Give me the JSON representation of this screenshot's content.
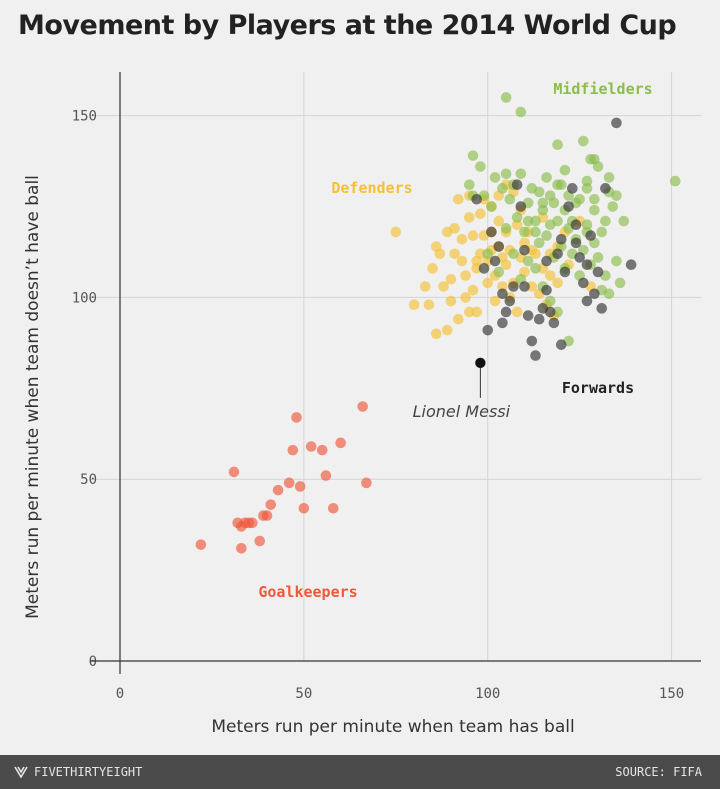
{
  "chart_data": {
    "type": "scatter",
    "title": "Movement by Players at the 2014 World Cup",
    "xlabel": "Meters run per minute when team has ball",
    "ylabel": "Meters run per minute when team doesn’t have ball",
    "xlim": [
      0,
      158
    ],
    "ylim": [
      0,
      162
    ],
    "x_ticks": [
      0,
      50,
      100,
      150
    ],
    "y_ticks": [
      0,
      50,
      100,
      150
    ],
    "grid": true,
    "legend": "direct labels",
    "series": [
      {
        "name": "Goalkeepers",
        "color": "#f0583a",
        "points": [
          [
            22,
            32
          ],
          [
            31,
            52
          ],
          [
            32,
            38
          ],
          [
            33,
            37
          ],
          [
            34,
            38
          ],
          [
            35,
            38
          ],
          [
            33,
            31
          ],
          [
            36,
            38
          ],
          [
            38,
            33
          ],
          [
            39,
            40
          ],
          [
            40,
            40
          ],
          [
            41,
            43
          ],
          [
            43,
            47
          ],
          [
            46,
            49
          ],
          [
            47,
            58
          ],
          [
            48,
            67
          ],
          [
            49,
            48
          ],
          [
            50,
            42
          ],
          [
            52,
            59
          ],
          [
            55,
            58
          ],
          [
            56,
            51
          ],
          [
            58,
            42
          ],
          [
            60,
            60
          ],
          [
            66,
            70
          ],
          [
            67,
            49
          ]
        ]
      },
      {
        "name": "Defenders",
        "color": "#f5c034",
        "points": [
          [
            75,
            118
          ],
          [
            80,
            98
          ],
          [
            83,
            103
          ],
          [
            85,
            108
          ],
          [
            86,
            114
          ],
          [
            87,
            112
          ],
          [
            88,
            103
          ],
          [
            89,
            118
          ],
          [
            90,
            105
          ],
          [
            90,
            99
          ],
          [
            91,
            112
          ],
          [
            91,
            119
          ],
          [
            92,
            127
          ],
          [
            92,
            94
          ],
          [
            93,
            110
          ],
          [
            93,
            116
          ],
          [
            94,
            106
          ],
          [
            94,
            100
          ],
          [
            95,
            128
          ],
          [
            95,
            122
          ],
          [
            96,
            102
          ],
          [
            96,
            117
          ],
          [
            97,
            108
          ],
          [
            97,
            96
          ],
          [
            98,
            112
          ],
          [
            98,
            123
          ],
          [
            99,
            127
          ],
          [
            100,
            110
          ],
          [
            100,
            104
          ],
          [
            101,
            118
          ],
          [
            101,
            113
          ],
          [
            102,
            106
          ],
          [
            102,
            99
          ],
          [
            103,
            121
          ],
          [
            103,
            114
          ],
          [
            104,
            111
          ],
          [
            104,
            103
          ],
          [
            105,
            118
          ],
          [
            105,
            109
          ],
          [
            106,
            113
          ],
          [
            106,
            100
          ],
          [
            107,
            104
          ],
          [
            108,
            120
          ],
          [
            108,
            96
          ],
          [
            109,
            111
          ],
          [
            110,
            115
          ],
          [
            110,
            107
          ],
          [
            112,
            103
          ],
          [
            112,
            113
          ],
          [
            114,
            101
          ],
          [
            115,
            108
          ],
          [
            116,
            98
          ],
          [
            117,
            112
          ],
          [
            118,
            95
          ],
          [
            119,
            104
          ],
          [
            121,
            118
          ],
          [
            84,
            98
          ],
          [
            86,
            90
          ],
          [
            89,
            91
          ],
          [
            95,
            96
          ],
          [
            97,
            110
          ],
          [
            99,
            117
          ],
          [
            101,
            125
          ],
          [
            103,
            128
          ],
          [
            105,
            131
          ],
          [
            107,
            129
          ],
          [
            109,
            124
          ],
          [
            111,
            118
          ],
          [
            113,
            112
          ],
          [
            115,
            122
          ],
          [
            117,
            106
          ],
          [
            119,
            114
          ],
          [
            122,
            109
          ],
          [
            125,
            121
          ],
          [
            128,
            103
          ]
        ]
      },
      {
        "name": "Midfielders",
        "color": "#8bbd4b",
        "points": [
          [
            105,
            155
          ],
          [
            109,
            151
          ],
          [
            114,
            129
          ],
          [
            116,
            133
          ],
          [
            118,
            126
          ],
          [
            119,
            142
          ],
          [
            120,
            131
          ],
          [
            121,
            135
          ],
          [
            122,
            128
          ],
          [
            124,
            126
          ],
          [
            126,
            143
          ],
          [
            127,
            132
          ],
          [
            128,
            138
          ],
          [
            129,
            127
          ],
          [
            130,
            136
          ],
          [
            131,
            118
          ],
          [
            132,
            121
          ],
          [
            133,
            129
          ],
          [
            134,
            125
          ],
          [
            135,
            110
          ],
          [
            136,
            104
          ],
          [
            137,
            121
          ],
          [
            151,
            132
          ],
          [
            95,
            131
          ],
          [
            96,
            128
          ],
          [
            98,
            136
          ],
          [
            99,
            128
          ],
          [
            101,
            125
          ],
          [
            102,
            133
          ],
          [
            104,
            130
          ],
          [
            105,
            134
          ],
          [
            106,
            127
          ],
          [
            107,
            131
          ],
          [
            108,
            122
          ],
          [
            109,
            134
          ],
          [
            110,
            118
          ],
          [
            111,
            126
          ],
          [
            112,
            130
          ],
          [
            113,
            121
          ],
          [
            114,
            115
          ],
          [
            115,
            124
          ],
          [
            116,
            117
          ],
          [
            117,
            120
          ],
          [
            118,
            111
          ],
          [
            119,
            121
          ],
          [
            120,
            114
          ],
          [
            121,
            108
          ],
          [
            122,
            119
          ],
          [
            123,
            112
          ],
          [
            124,
            116
          ],
          [
            125,
            106
          ],
          [
            126,
            113
          ],
          [
            127,
            120
          ],
          [
            128,
            109
          ],
          [
            129,
            115
          ],
          [
            130,
            111
          ],
          [
            131,
            102
          ],
          [
            132,
            106
          ],
          [
            133,
            101
          ],
          [
            122,
            88
          ],
          [
            100,
            112
          ],
          [
            103,
            107
          ],
          [
            105,
            119
          ],
          [
            107,
            112
          ],
          [
            109,
            105
          ],
          [
            111,
            110
          ],
          [
            113,
            108
          ],
          [
            115,
            103
          ],
          [
            117,
            99
          ],
          [
            119,
            96
          ],
          [
            96,
            139
          ],
          [
            111,
            121
          ],
          [
            113,
            118
          ],
          [
            115,
            126
          ],
          [
            117,
            128
          ],
          [
            119,
            131
          ],
          [
            121,
            124
          ],
          [
            123,
            121
          ],
          [
            125,
            127
          ],
          [
            127,
            118
          ],
          [
            129,
            124
          ],
          [
            133,
            133
          ],
          [
            135,
            128
          ],
          [
            129,
            138
          ],
          [
            127,
            130
          ]
        ]
      },
      {
        "name": "Forwards",
        "color": "#333333",
        "points": [
          [
            98,
            82
          ],
          [
            97,
            127
          ],
          [
            99,
            108
          ],
          [
            101,
            118
          ],
          [
            102,
            110
          ],
          [
            103,
            114
          ],
          [
            104,
            101
          ],
          [
            105,
            96
          ],
          [
            106,
            99
          ],
          [
            107,
            103
          ],
          [
            108,
            131
          ],
          [
            109,
            125
          ],
          [
            110,
            113
          ],
          [
            111,
            95
          ],
          [
            112,
            88
          ],
          [
            113,
            84
          ],
          [
            114,
            94
          ],
          [
            115,
            97
          ],
          [
            116,
            102
          ],
          [
            117,
            96
          ],
          [
            118,
            93
          ],
          [
            119,
            112
          ],
          [
            120,
            116
          ],
          [
            121,
            107
          ],
          [
            122,
            125
          ],
          [
            123,
            130
          ],
          [
            124,
            120
          ],
          [
            125,
            111
          ],
          [
            126,
            104
          ],
          [
            127,
            109
          ],
          [
            128,
            117
          ],
          [
            129,
            101
          ],
          [
            130,
            107
          ],
          [
            131,
            97
          ],
          [
            132,
            130
          ],
          [
            135,
            148
          ],
          [
            139,
            109
          ],
          [
            120,
            87
          ],
          [
            100,
            91
          ],
          [
            104,
            93
          ],
          [
            110,
            103
          ],
          [
            116,
            110
          ],
          [
            124,
            115
          ],
          [
            127,
            99
          ]
        ]
      }
    ],
    "annotations": [
      {
        "text": "Lionel Messi",
        "x": 98,
        "y": 82
      }
    ]
  },
  "footer": {
    "brand": "FIVETHIRTYEIGHT",
    "source": "SOURCE: FIFA"
  }
}
